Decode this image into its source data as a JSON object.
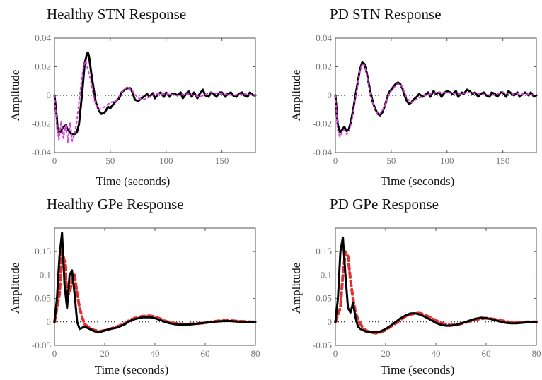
{
  "chart_data": [
    {
      "type": "line",
      "title": "Healthy STN Response",
      "xlabel": "Time (seconds)",
      "ylabel": "Amplitude",
      "xlim": [
        0,
        180
      ],
      "ylim": [
        -0.04,
        0.04
      ],
      "xticks": [
        "0",
        "50",
        "100",
        "150"
      ],
      "yticks": [
        "-0.04",
        "-0.02",
        "0",
        "0.02",
        "0.04"
      ],
      "zero_line": true,
      "series": [
        {
          "style": "solid",
          "color": "#000000",
          "x": [
            0,
            2,
            3,
            5,
            8,
            10,
            12,
            15,
            18,
            20,
            22,
            25,
            27,
            29,
            30,
            31,
            33,
            35,
            37,
            40,
            42,
            45,
            48,
            50,
            53,
            55,
            58,
            60,
            63,
            65,
            68,
            70,
            72,
            75,
            78,
            80,
            83,
            85,
            88,
            90,
            93,
            95,
            98,
            100,
            103,
            105,
            108,
            110,
            113,
            115,
            118,
            120,
            123,
            125,
            128,
            130,
            133,
            135,
            138,
            140,
            143,
            145,
            148,
            150,
            153,
            155,
            158,
            160,
            163,
            165,
            168,
            170,
            173,
            175,
            178,
            180
          ],
          "y": [
            0,
            -0.015,
            -0.026,
            -0.026,
            -0.022,
            -0.021,
            -0.024,
            -0.027,
            -0.027,
            -0.026,
            -0.02,
            0.003,
            0.022,
            0.029,
            0.03,
            0.027,
            0.015,
            0.005,
            -0.005,
            -0.011,
            -0.013,
            -0.012,
            -0.008,
            -0.009,
            -0.006,
            -0.004,
            -0.002,
            0.002,
            0.004,
            0.005,
            0.005,
            0.002,
            -0.003,
            -0.004,
            -0.002,
            -0.001,
            0.001,
            -0.001,
            0.0015,
            -0.002,
            0.001,
            0.002,
            -0.001,
            0.002,
            -0.001,
            0.001,
            0.001,
            0,
            0.002,
            -0.002,
            0.001,
            0.003,
            -0.001,
            0.002,
            -0.002,
            0.001,
            0.004,
            0,
            -0.001,
            0.002,
            0.001,
            -0.001,
            0.002,
            0.002,
            -0.001,
            0.001,
            0.002,
            0,
            -0.001,
            0.001,
            0.002,
            0,
            -0.001,
            0.002,
            0,
            0
          ]
        },
        {
          "style": "dashed",
          "color": "#d93bd9",
          "x": [
            0,
            2,
            4,
            6,
            8,
            10,
            12,
            14,
            16,
            18,
            20,
            22,
            24,
            26,
            28,
            30,
            32,
            34,
            36,
            38,
            40,
            45,
            50,
            55,
            60,
            65,
            70,
            75,
            80,
            90,
            100,
            110,
            120,
            130,
            140,
            150,
            160,
            170,
            180
          ],
          "y": [
            0,
            -0.02,
            -0.031,
            -0.018,
            -0.03,
            -0.021,
            -0.033,
            -0.019,
            -0.032,
            -0.027,
            -0.018,
            -0.005,
            0.009,
            0.02,
            0.024,
            0.018,
            0.012,
            0.004,
            -0.004,
            -0.008,
            -0.01,
            -0.008,
            -0.005,
            -0.004,
            0.002,
            0.006,
            0.003,
            -0.002,
            -0.003,
            0.001,
            0.001,
            0,
            0.001,
            -0.001,
            0.002,
            0.001,
            0,
            0.001,
            0
          ]
        }
      ]
    },
    {
      "type": "line",
      "title": "PD STN Response",
      "xlabel": "Time (seconds)",
      "ylabel": "Amplitude",
      "xlim": [
        0,
        180
      ],
      "ylim": [
        -0.04,
        0.04
      ],
      "xticks": [
        "0",
        "50",
        "100",
        "150"
      ],
      "yticks": [
        "-0.04",
        "-0.02",
        "0",
        "0.02",
        "0.04"
      ],
      "zero_line": true,
      "series": [
        {
          "style": "solid",
          "color": "#000000",
          "x": [
            0,
            2,
            4,
            6,
            8,
            10,
            12,
            14,
            16,
            18,
            20,
            22,
            24,
            26,
            28,
            30,
            32,
            34,
            36,
            38,
            40,
            42,
            44,
            46,
            48,
            50,
            52,
            54,
            56,
            58,
            60,
            62,
            64,
            66,
            68,
            70,
            73,
            75,
            78,
            80,
            83,
            85,
            88,
            90,
            93,
            95,
            98,
            100,
            103,
            105,
            108,
            110,
            113,
            115,
            118,
            120,
            123,
            125,
            128,
            130,
            133,
            135,
            138,
            140,
            143,
            145,
            148,
            150,
            153,
            155,
            158,
            160,
            163,
            165,
            168,
            170,
            173,
            175,
            178,
            180
          ],
          "y": [
            0,
            -0.02,
            -0.026,
            -0.024,
            -0.022,
            -0.025,
            -0.024,
            -0.018,
            -0.01,
            0,
            0.009,
            0.018,
            0.023,
            0.022,
            0.016,
            0.008,
            0,
            -0.006,
            -0.01,
            -0.013,
            -0.014,
            -0.012,
            -0.008,
            -0.003,
            0.002,
            0.004,
            0.006,
            0.008,
            0.009,
            0.008,
            0.005,
            0,
            -0.004,
            -0.006,
            -0.005,
            -0.003,
            -0.001,
            0.001,
            -0.001,
            0,
            0.002,
            -0.001,
            0.003,
            0.001,
            0.002,
            -0.001,
            0.002,
            0.003,
            0.002,
            0.001,
            0.003,
            -0.001,
            0.002,
            0.001,
            0.004,
            0.003,
            0.001,
            0.002,
            -0.001,
            0.001,
            0.002,
            0,
            -0.001,
            0.002,
            0.001,
            -0.001,
            0.002,
            0.002,
            -0.001,
            0.003,
            0.001,
            0,
            0.002,
            -0.001,
            0.001,
            0.002,
            0,
            0.002,
            -0.001,
            0
          ]
        },
        {
          "style": "dashed",
          "color": "#d93bd9",
          "x": [
            0,
            2,
            4,
            6,
            8,
            10,
            12,
            14,
            16,
            18,
            20,
            22,
            24,
            26,
            28,
            30,
            32,
            34,
            36,
            38,
            40,
            44,
            48,
            52,
            56,
            60,
            64,
            68,
            72,
            80,
            90,
            100,
            110,
            120,
            130,
            140,
            150,
            160,
            170,
            180
          ],
          "y": [
            0,
            -0.024,
            -0.029,
            -0.026,
            -0.024,
            -0.027,
            -0.026,
            -0.02,
            -0.012,
            -0.002,
            0.008,
            0.017,
            0.022,
            0.021,
            0.015,
            0.007,
            -0.001,
            -0.007,
            -0.011,
            -0.013,
            -0.013,
            -0.008,
            0.001,
            0.005,
            0.008,
            0.006,
            -0.002,
            -0.005,
            -0.003,
            0,
            0.002,
            0.002,
            0.001,
            0.002,
            0.001,
            0,
            0.002,
            0.001,
            0.001,
            0
          ]
        }
      ]
    },
    {
      "type": "line",
      "title": "Healthy GPe Response",
      "xlabel": "Time (seconds)",
      "ylabel": "Amplitude",
      "xlim": [
        0,
        80
      ],
      "ylim": [
        -0.05,
        0.2
      ],
      "xticks": [
        "0",
        "20",
        "40",
        "60",
        "80"
      ],
      "yticks": [
        "-0.05",
        "0",
        "0.05",
        "0.1",
        "0.15"
      ],
      "zero_line": true,
      "series": [
        {
          "style": "solid",
          "color": "#000000",
          "x": [
            0,
            1,
            2,
            3,
            4,
            5,
            6,
            7,
            8,
            9,
            10,
            12,
            14,
            16,
            18,
            20,
            22,
            25,
            28,
            30,
            32,
            35,
            38,
            40,
            42,
            44,
            46,
            48,
            50,
            52,
            55,
            58,
            60,
            62,
            65,
            68,
            70,
            72,
            75,
            78,
            80
          ],
          "y": [
            0,
            0.05,
            0.14,
            0.19,
            0.08,
            0.03,
            0.1,
            0.11,
            0.06,
            0,
            -0.015,
            -0.01,
            -0.015,
            -0.02,
            -0.022,
            -0.018,
            -0.015,
            -0.012,
            -0.005,
            0.002,
            0.006,
            0.01,
            0.01,
            0.008,
            0.004,
            0,
            -0.003,
            -0.005,
            -0.006,
            -0.006,
            -0.005,
            -0.003,
            -0.002,
            0,
            0.001,
            0.002,
            0.002,
            0.001,
            0,
            0,
            0
          ]
        },
        {
          "style": "dashed",
          "color": "#e03030",
          "x": [
            0,
            2,
            3,
            4,
            5,
            6,
            7,
            8,
            9,
            10,
            11,
            12,
            14,
            16,
            18,
            20,
            22,
            25,
            28,
            30,
            32,
            35,
            38,
            40,
            42,
            44,
            46,
            48,
            50,
            52,
            55,
            58,
            60,
            62,
            65,
            68,
            70,
            72,
            75,
            78,
            80
          ],
          "y": [
            0,
            0.06,
            0.15,
            0.13,
            0.06,
            0.06,
            0.09,
            0.1,
            0.06,
            0.03,
            0.01,
            -0.005,
            -0.013,
            -0.018,
            -0.02,
            -0.018,
            -0.015,
            -0.01,
            -0.003,
            0.004,
            0.008,
            0.012,
            0.013,
            0.011,
            0.007,
            0.002,
            -0.001,
            -0.003,
            -0.004,
            -0.005,
            -0.004,
            -0.003,
            -0.002,
            0,
            0.002,
            0.003,
            0.003,
            0.002,
            0.001,
            0,
            0
          ]
        }
      ]
    },
    {
      "type": "line",
      "title": "PD GPe Response",
      "xlabel": "Time (seconds)",
      "ylabel": "Amplitude",
      "xlim": [
        0,
        80
      ],
      "ylim": [
        -0.05,
        0.2
      ],
      "xticks": [
        "0",
        "20",
        "40",
        "60",
        "80"
      ],
      "yticks": [
        "-0.05",
        "0",
        "0.05",
        "0.1",
        "0.15"
      ],
      "zero_line": true,
      "series": [
        {
          "style": "solid",
          "color": "#000000",
          "x": [
            0,
            1,
            2,
            3,
            4,
            5,
            6,
            7,
            8,
            9,
            10,
            12,
            14,
            16,
            18,
            20,
            22,
            24,
            26,
            28,
            30,
            32,
            34,
            36,
            38,
            40,
            42,
            44,
            46,
            48,
            50,
            52,
            54,
            56,
            58,
            60,
            62,
            64,
            66,
            68,
            70,
            72,
            74,
            76,
            78,
            80
          ],
          "y": [
            0,
            0.05,
            0.15,
            0.18,
            0.1,
            0.03,
            0.02,
            0.04,
            0.01,
            -0.01,
            -0.015,
            -0.02,
            -0.022,
            -0.022,
            -0.02,
            -0.015,
            -0.008,
            0,
            0.008,
            0.014,
            0.018,
            0.018,
            0.015,
            0.01,
            0.004,
            -0.002,
            -0.006,
            -0.008,
            -0.008,
            -0.006,
            -0.003,
            0,
            0.004,
            0.007,
            0.009,
            0.008,
            0.006,
            0.003,
            0,
            -0.002,
            -0.003,
            -0.003,
            -0.002,
            -0.001,
            0,
            0
          ]
        },
        {
          "style": "dashed",
          "color": "#e03030",
          "x": [
            0,
            2,
            3,
            4,
            5,
            6,
            7,
            8,
            9,
            10,
            11,
            12,
            14,
            16,
            18,
            20,
            22,
            24,
            26,
            28,
            30,
            32,
            34,
            36,
            38,
            40,
            42,
            44,
            46,
            48,
            50,
            52,
            54,
            56,
            58,
            60,
            62,
            64,
            66,
            68,
            70,
            72,
            74,
            76,
            78,
            80
          ],
          "y": [
            0,
            0.03,
            0.1,
            0.15,
            0.14,
            0.09,
            0.05,
            0.02,
            0.005,
            -0.005,
            -0.012,
            -0.018,
            -0.022,
            -0.024,
            -0.022,
            -0.017,
            -0.01,
            -0.003,
            0.005,
            0.012,
            0.016,
            0.019,
            0.018,
            0.014,
            0.009,
            0.003,
            -0.002,
            -0.005,
            -0.007,
            -0.006,
            -0.004,
            -0.001,
            0.002,
            0.005,
            0.007,
            0.008,
            0.007,
            0.005,
            0.003,
            0.001,
            -0.001,
            -0.001,
            -0.001,
            0,
            0,
            0
          ]
        }
      ]
    }
  ]
}
